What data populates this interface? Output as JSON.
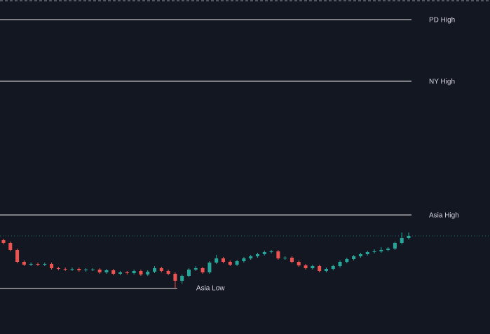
{
  "chart_data": {
    "type": "candlestick",
    "ylim": [
      0,
      477
    ],
    "up_color": "#26a69a",
    "down_color": "#ef5350",
    "level_color": "#e8e8e8",
    "levels": [
      {
        "name": "PD High",
        "value": 449
      },
      {
        "name": "NY High",
        "value": 361
      },
      {
        "name": "Asia High",
        "value": 170
      },
      {
        "name": "Asia Low",
        "value": 65
      }
    ],
    "candles": [
      [
        134,
        136,
        128,
        130
      ],
      [
        130,
        132,
        118,
        120
      ],
      [
        120,
        122,
        101,
        103
      ],
      [
        103,
        105,
        97,
        99
      ],
      [
        99,
        102,
        97,
        100
      ],
      [
        100,
        102,
        97,
        99
      ],
      [
        99,
        102,
        97,
        100
      ],
      [
        100,
        102,
        92,
        94
      ],
      [
        94,
        96,
        91,
        93
      ],
      [
        93,
        95,
        90,
        92
      ],
      [
        92,
        95,
        90,
        93
      ],
      [
        93,
        95,
        89,
        91
      ],
      [
        91,
        94,
        89,
        92
      ],
      [
        92,
        94,
        90,
        92
      ],
      [
        92,
        94,
        86,
        88
      ],
      [
        88,
        93,
        86,
        91
      ],
      [
        91,
        93,
        84,
        86
      ],
      [
        86,
        90,
        84,
        88
      ],
      [
        88,
        90,
        85,
        87
      ],
      [
        87,
        92,
        85,
        90
      ],
      [
        90,
        92,
        83,
        85
      ],
      [
        85,
        91,
        83,
        89
      ],
      [
        89,
        97,
        87,
        94
      ],
      [
        94,
        96,
        88,
        90
      ],
      [
        90,
        92,
        84,
        86
      ],
      [
        86,
        88,
        65,
        76
      ],
      [
        76,
        85,
        72,
        83
      ],
      [
        83,
        94,
        81,
        92
      ],
      [
        92,
        97,
        90,
        94
      ],
      [
        94,
        96,
        86,
        88
      ],
      [
        88,
        104,
        86,
        102
      ],
      [
        102,
        113,
        100,
        108
      ],
      [
        108,
        110,
        101,
        103
      ],
      [
        103,
        105,
        97,
        99
      ],
      [
        99,
        106,
        97,
        104
      ],
      [
        104,
        110,
        102,
        108
      ],
      [
        108,
        113,
        106,
        111
      ],
      [
        111,
        116,
        109,
        114
      ],
      [
        114,
        119,
        112,
        117
      ],
      [
        117,
        120,
        115,
        118
      ],
      [
        118,
        120,
        106,
        108
      ],
      [
        108,
        111,
        106,
        109
      ],
      [
        109,
        111,
        101,
        103
      ],
      [
        103,
        105,
        96,
        98
      ],
      [
        98,
        100,
        92,
        94
      ],
      [
        94,
        99,
        92,
        97
      ],
      [
        97,
        99,
        88,
        90
      ],
      [
        90,
        95,
        88,
        93
      ],
      [
        93,
        99,
        91,
        97
      ],
      [
        97,
        105,
        95,
        103
      ],
      [
        103,
        109,
        101,
        107
      ],
      [
        107,
        113,
        105,
        111
      ],
      [
        111,
        116,
        109,
        114
      ],
      [
        114,
        119,
        112,
        117
      ],
      [
        117,
        121,
        115,
        118
      ],
      [
        118,
        124,
        116,
        120
      ],
      [
        120,
        124,
        118,
        122
      ],
      [
        122,
        132,
        120,
        130
      ],
      [
        130,
        145,
        128,
        137
      ],
      [
        137,
        145,
        135,
        140
      ]
    ]
  }
}
